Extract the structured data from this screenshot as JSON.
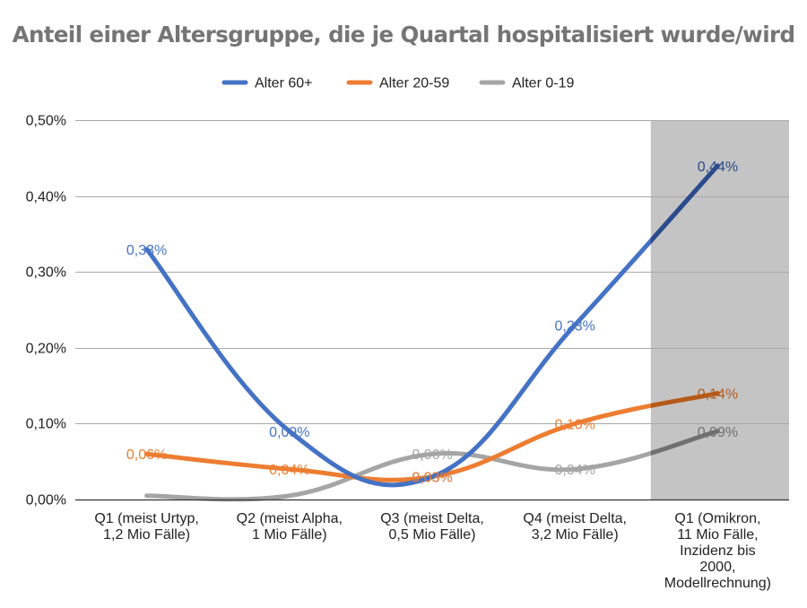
{
  "chart_data": {
    "type": "line",
    "title": "Anteil einer Altersgruppe, die je Quartal hospitalisiert wurde/wird",
    "categories": [
      [
        "Q1 (meist Urtyp,",
        "1,2 Mio Fälle)"
      ],
      [
        "Q2 (meist Alpha,",
        "1 Mio Fälle)"
      ],
      [
        "Q3 (meist Delta,",
        "0,5 Mio Fälle)"
      ],
      [
        "Q4 (meist Delta,",
        "3,2 Mio Fälle)"
      ],
      [
        "Q1 (Omikron,",
        "11 Mio Fälle,",
        "Inzidenz bis",
        "2000,",
        "Modellrechnung)"
      ]
    ],
    "series": [
      {
        "name": "Alter 60+",
        "color": "#4472c4",
        "dark_color": "#2b4a8a",
        "values": [
          0.33,
          0.09,
          0.03,
          0.23,
          0.44
        ],
        "labels": [
          "0,33%",
          "0,09%",
          "0,03%",
          "0,23%",
          "0,44%"
        ]
      },
      {
        "name": "Alter 20-59",
        "color": "#ed7d31",
        "dark_color": "#b55a1a",
        "values": [
          0.06,
          0.04,
          0.03,
          0.1,
          0.14
        ],
        "labels": [
          "0,06%",
          "0,04%",
          "0,03%",
          "0,10%",
          "0,14%"
        ]
      },
      {
        "name": "Alter 0-19",
        "color": "#a5a5a5",
        "dark_color": "#707070",
        "values": [
          0.005,
          0.005,
          0.06,
          0.04,
          0.09
        ],
        "labels": [
          "",
          "",
          "0,06%",
          "0,04%",
          "0,09%"
        ]
      }
    ],
    "y_ticks": [
      "0,00%",
      "0,10%",
      "0,20%",
      "0,30%",
      "0,40%",
      "0,50%"
    ],
    "y_tick_values": [
      0,
      0.1,
      0.2,
      0.3,
      0.4,
      0.5
    ],
    "ylim": [
      0,
      0.5
    ],
    "highlight_category": 4,
    "highlight_color": "#c4c4c4",
    "grid": true,
    "legend_position": "top"
  }
}
